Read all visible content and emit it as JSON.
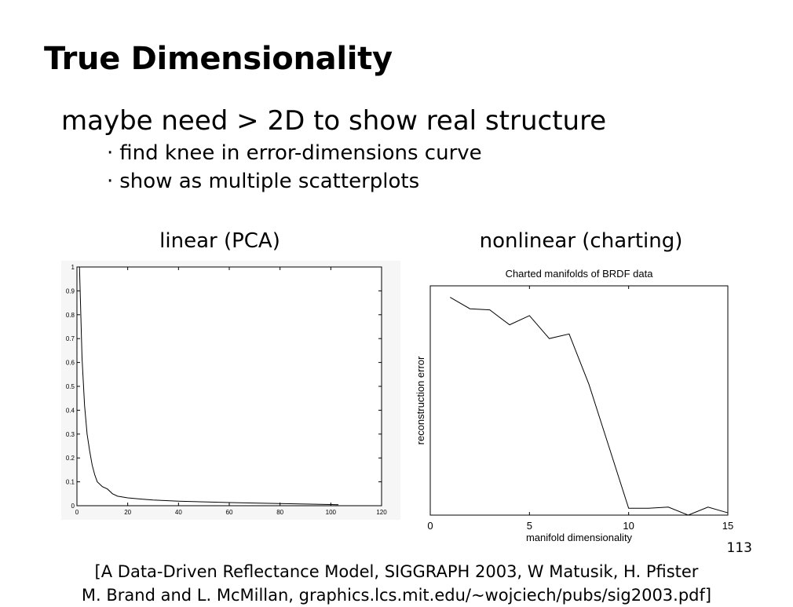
{
  "slide": {
    "title": "True Dimensionality",
    "main_bullet": "maybe need > 2D to show real structure",
    "sub_bullets": [
      "find knee in error-dimensions curve",
      "show as multiple scatterplots"
    ],
    "bullet_glyph": "·",
    "captions": {
      "left": "linear (PCA)",
      "right": "nonlinear (charting)"
    },
    "page_number": "113",
    "citation": {
      "line1": "[A Data-Driven Reflectance Model, SIGGRAPH 2003, W Matusik, H. Pfister",
      "line2": "M. Brand and L. McMillan, graphics.lcs.mit.edu/~wojciech/pubs/sig2003.pdf]"
    }
  },
  "chart_data": [
    {
      "type": "line",
      "title": "",
      "xlabel": "",
      "ylabel": "",
      "xlim": [
        0,
        120
      ],
      "ylim": [
        0,
        1
      ],
      "xticks": [
        "0",
        "20",
        "40",
        "60",
        "80",
        "100",
        "120"
      ],
      "yticks": [
        "0",
        "0.1",
        "0.2",
        "0.3",
        "0.4",
        "0.5",
        "0.6",
        "0.7",
        "0.8",
        "0.9",
        "1"
      ],
      "series": [
        {
          "x": [
            1,
            2,
            3,
            4,
            5,
            6,
            7,
            8,
            10,
            12,
            14,
            16,
            20,
            25,
            30,
            40,
            50,
            60,
            70,
            80,
            90,
            100,
            103
          ],
          "y": [
            1.0,
            0.62,
            0.42,
            0.3,
            0.23,
            0.17,
            0.13,
            0.1,
            0.08,
            0.07,
            0.05,
            0.04,
            0.033,
            0.028,
            0.024,
            0.019,
            0.016,
            0.013,
            0.011,
            0.009,
            0.007,
            0.005,
            0.004
          ]
        }
      ]
    },
    {
      "type": "line",
      "title": "Charted manifolds of BRDF data",
      "xlabel": "manifold dimensionality",
      "ylabel": "reconstruction error",
      "xlim": [
        0,
        15
      ],
      "ylim": [
        0,
        1
      ],
      "xticks": [
        "0",
        "5",
        "10",
        "15"
      ],
      "yticks": [],
      "series": [
        {
          "x": [
            1,
            2,
            3,
            4,
            5,
            6,
            7,
            8,
            9,
            10,
            11,
            12,
            13,
            14,
            15
          ],
          "y": [
            0.95,
            0.9,
            0.895,
            0.83,
            0.87,
            0.77,
            0.79,
            0.57,
            0.3,
            0.03,
            0.03,
            0.035,
            0.0,
            0.035,
            0.01
          ]
        }
      ]
    }
  ]
}
